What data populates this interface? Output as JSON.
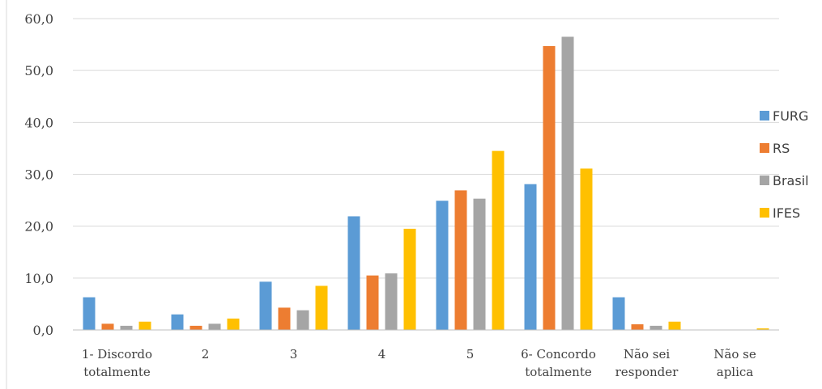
{
  "chart_data": {
    "type": "bar",
    "categories": [
      [
        "1- Discordo",
        "totalmente"
      ],
      [
        "2"
      ],
      [
        "3"
      ],
      [
        "4"
      ],
      [
        "5"
      ],
      [
        "6- Concordo",
        "totalmente"
      ],
      [
        "Não sei",
        "responder"
      ],
      [
        "Não se",
        "aplica"
      ]
    ],
    "series": [
      {
        "name": "FURG",
        "color": "#5B9BD5",
        "values": [
          6.3,
          3.0,
          9.3,
          21.9,
          24.9,
          28.1,
          6.3,
          0.0
        ]
      },
      {
        "name": "RS",
        "color": "#ED7D31",
        "values": [
          1.2,
          0.8,
          4.3,
          10.5,
          26.9,
          54.7,
          1.1,
          0.0
        ]
      },
      {
        "name": "Brasil",
        "color": "#A5A5A5",
        "values": [
          0.8,
          1.2,
          3.8,
          10.9,
          25.3,
          56.5,
          0.8,
          0.0
        ]
      },
      {
        "name": "IFES",
        "color": "#FFC000",
        "values": [
          1.6,
          2.2,
          8.5,
          19.5,
          34.5,
          31.1,
          1.6,
          0.3
        ]
      }
    ],
    "yticks": [
      "0,0",
      "10,0",
      "20,0",
      "30,0",
      "40,0",
      "50,0",
      "60,0"
    ],
    "ylim": [
      0,
      60
    ],
    "title": "",
    "xlabel": "",
    "ylabel": "",
    "grid": true,
    "legend": "right"
  }
}
